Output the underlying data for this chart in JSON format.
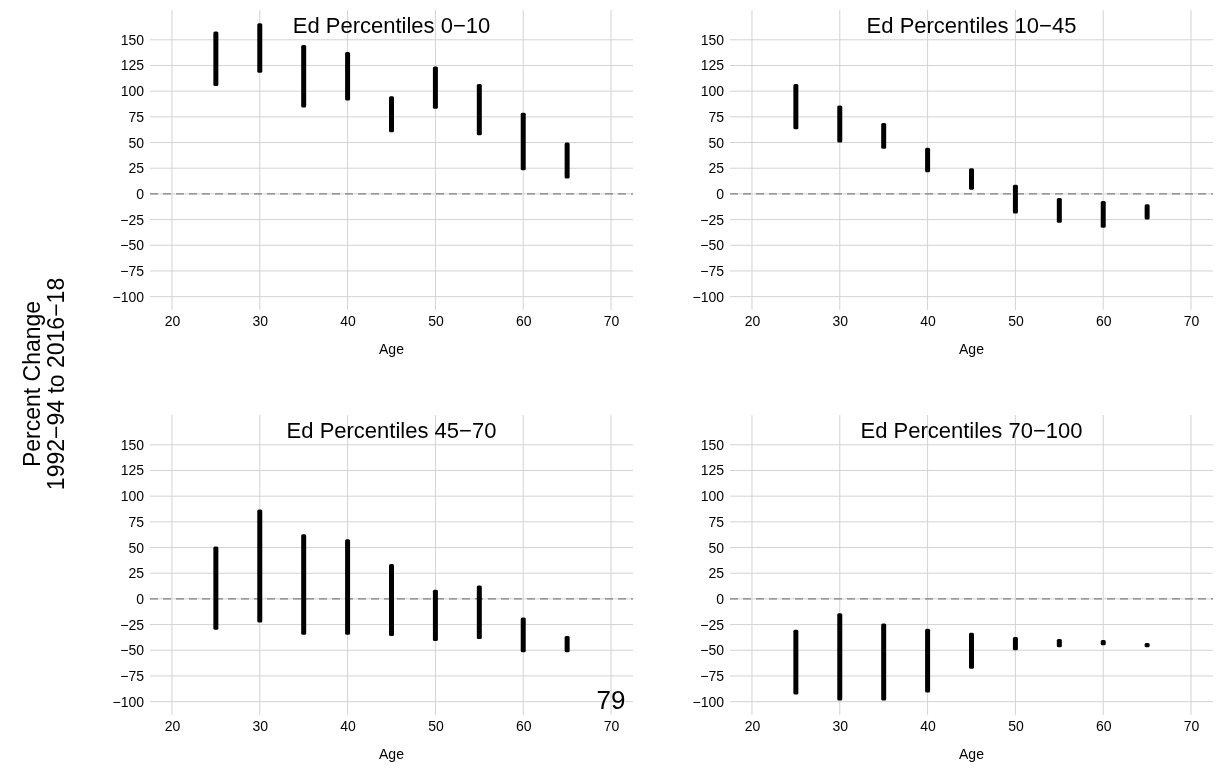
{
  "chart_data": [
    {
      "type": "bar",
      "title": "Ed Percentiles 0−10",
      "xlabel": "Age",
      "ylabel": "Percent Change\n1992−94 to 2016−18",
      "x": [
        25,
        30,
        35,
        40,
        45,
        50,
        55,
        60,
        65
      ],
      "base": [
        105,
        118,
        84,
        91,
        60,
        83,
        57,
        23,
        15
      ],
      "values": [
        53,
        48,
        61,
        47,
        35,
        41,
        50,
        56,
        35
      ],
      "color": "#000000",
      "xlim": [
        17.5,
        72.5
      ],
      "xticks": [
        20,
        30,
        40,
        50,
        60,
        70
      ],
      "ylim": [
        -113,
        179
      ],
      "yticks": [
        -100,
        -75,
        -50,
        -25,
        0,
        25,
        50,
        75,
        100,
        125,
        150
      ],
      "grid": true,
      "ref_lines": [
        {
          "axis": "y",
          "value": 0,
          "color": "#7f7f7f",
          "line_style": "dashed"
        }
      ]
    },
    {
      "type": "bar",
      "title": "Ed Percentiles 10−45",
      "xlabel": "Age",
      "x": [
        25,
        30,
        35,
        40,
        45,
        50,
        55,
        60,
        65
      ],
      "base": [
        63,
        50,
        44,
        21,
        4,
        -19,
        -28,
        -33,
        -25
      ],
      "values": [
        44,
        36,
        25,
        24,
        21,
        28,
        24,
        26,
        15
      ],
      "color": "#000000",
      "xlim": [
        17.5,
        72.5
      ],
      "xticks": [
        20,
        30,
        40,
        50,
        60,
        70
      ],
      "ylim": [
        -113,
        179
      ],
      "yticks": [
        -100,
        -75,
        -50,
        -25,
        0,
        25,
        50,
        75,
        100,
        125,
        150
      ],
      "grid": true,
      "ref_lines": [
        {
          "axis": "y",
          "value": 0,
          "color": "#7f7f7f",
          "line_style": "dashed"
        }
      ]
    },
    {
      "type": "bar",
      "title": "Ed Percentiles 45−70",
      "xlabel": "Age",
      "x": [
        25,
        30,
        35,
        40,
        45,
        50,
        55,
        60,
        65
      ],
      "base": [
        -30,
        -23,
        -35,
        -35,
        -36,
        -41,
        -39,
        -52,
        -52
      ],
      "values": [
        81,
        110,
        98,
        93,
        70,
        50,
        52,
        34,
        16
      ],
      "color": "#000000",
      "xlim": [
        17.5,
        72.5
      ],
      "xticks": [
        20,
        30,
        40,
        50,
        60,
        70
      ],
      "ylim": [
        -113,
        179
      ],
      "yticks": [
        -100,
        -75,
        -50,
        -25,
        0,
        25,
        50,
        75,
        100,
        125,
        150
      ],
      "grid": true,
      "ref_lines": [
        {
          "axis": "y",
          "value": 0,
          "color": "#7f7f7f",
          "line_style": "dashed"
        }
      ],
      "annotations": [
        "79"
      ]
    },
    {
      "type": "bar",
      "title": "Ed Percentiles 70−100",
      "xlabel": "Age",
      "x": [
        25,
        30,
        35,
        40,
        45,
        50,
        55,
        60,
        65
      ],
      "base": [
        -93,
        -99,
        -99,
        -91,
        -68,
        -50,
        -47,
        -45,
        -47
      ],
      "values": [
        63,
        85,
        75,
        62,
        35,
        13,
        8,
        5,
        4
      ],
      "color": "#000000",
      "xlim": [
        17.5,
        72.5
      ],
      "xticks": [
        20,
        30,
        40,
        50,
        60,
        70
      ],
      "ylim": [
        -113,
        179
      ],
      "yticks": [
        -100,
        -75,
        -50,
        -25,
        0,
        25,
        50,
        75,
        100,
        125,
        150
      ],
      "grid": true,
      "ref_lines": [
        {
          "axis": "y",
          "value": 0,
          "color": "#7f7f7f",
          "line_style": "dashed"
        }
      ]
    }
  ]
}
